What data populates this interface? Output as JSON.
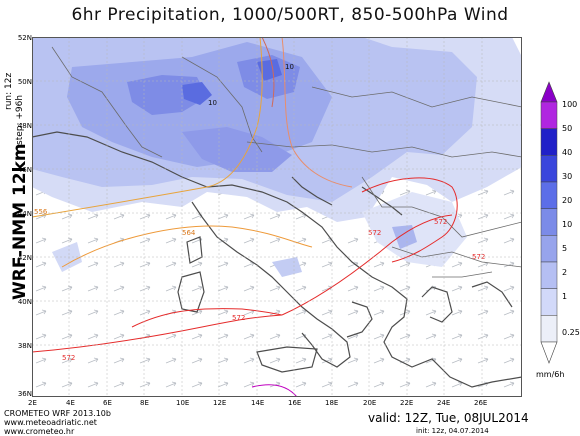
{
  "title": "6hr Precipitation, 1000/500RT, 850-500hPa Wind",
  "run": {
    "run_label": "run: 12z",
    "step_label": "step: +96h"
  },
  "model_label": "WRF-NMM 12km",
  "map": {
    "lat_labels": [
      "52N",
      "50N",
      "48N",
      "46N",
      "44N",
      "42N",
      "40N",
      "38N",
      "36N"
    ],
    "lon_labels": [
      "2E",
      "4E",
      "6E",
      "8E",
      "10E",
      "12E",
      "14E",
      "16E",
      "18E",
      "20E",
      "22E",
      "24E",
      "26E"
    ],
    "thickness_labels": [
      "556",
      "564",
      "572",
      "572",
      "572",
      "572",
      "572"
    ],
    "precip_labels": [
      "10",
      "10"
    ]
  },
  "legend": {
    "units": "mm/6h",
    "levels": [
      "100",
      "50",
      "40",
      "30",
      "20",
      "10",
      "5",
      "2",
      "1",
      "0.25"
    ],
    "colors": [
      "#8a00c8",
      "#b026e0",
      "#2020c8",
      "#3a46dc",
      "#5c6ee8",
      "#7b8be8",
      "#97a4ec",
      "#b5bff3",
      "#d2d9f9",
      "#eceff8"
    ]
  },
  "footer": {
    "product": "CROMETEO WRF 2013.10b",
    "url1": "www.meteoadriatic.net",
    "url2": "www.crometeo.hr",
    "valid": "valid: 12Z, Tue, 08JUL2014",
    "init": "init: 12z, 04.07.2014"
  }
}
